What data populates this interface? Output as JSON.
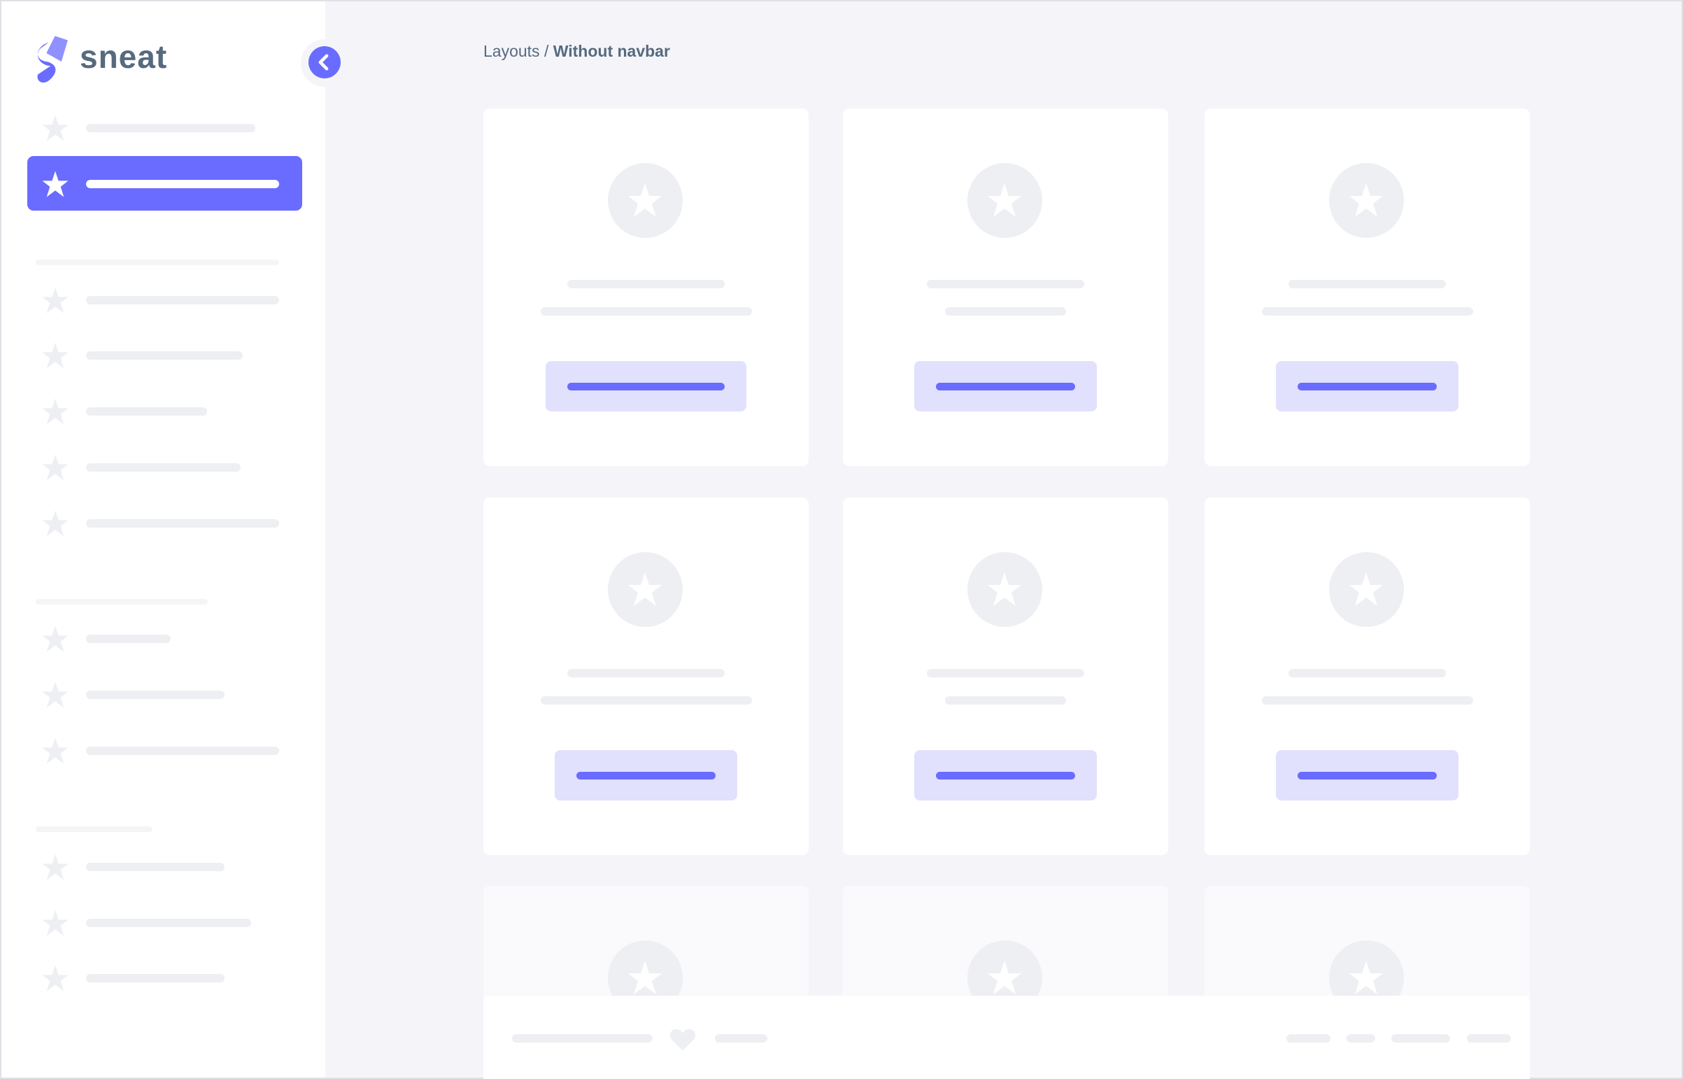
{
  "brand": {
    "name": "sneat",
    "logo_icon": "sneat-s-logo-icon"
  },
  "sidebar_toggle": {
    "icon": "chevron-left-icon"
  },
  "breadcrumb": {
    "parent": "Layouts",
    "separator": "/",
    "current": "Without navbar"
  },
  "icons": {
    "menu_item": "star-icon",
    "card": "star-icon",
    "footer": "heart-icon"
  },
  "colors": {
    "primary": "#696cff",
    "primary_light": "#e1e1fd",
    "heading": "#566a7f",
    "background": "#f5f5f9",
    "skeleton": "#eeeff2"
  },
  "sidebar": {
    "active_index": 1
  }
}
